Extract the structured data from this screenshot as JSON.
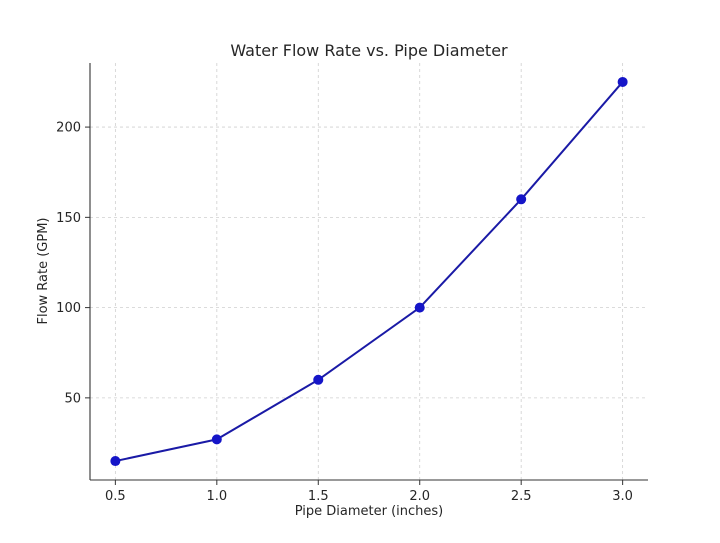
{
  "chart_data": {
    "type": "line",
    "title": "Water Flow Rate vs. Pipe Diameter",
    "xlabel": "Pipe Diameter (inches)",
    "ylabel": "Flow Rate (GPM)",
    "x": [
      0.5,
      1.0,
      1.5,
      2.0,
      2.5,
      3.0
    ],
    "series": [
      {
        "values": [
          15,
          27,
          60,
          100,
          160,
          225
        ]
      }
    ],
    "xlim": [
      0.375,
      3.125
    ],
    "ylim": [
      4.5,
      235.5
    ],
    "xticks": [
      "0.5",
      "1.0",
      "1.5",
      "2.0",
      "2.5",
      "3.0"
    ],
    "xtick_values": [
      0.5,
      1.0,
      1.5,
      2.0,
      2.5,
      3.0
    ],
    "yticks": [
      "50",
      "100",
      "150",
      "200"
    ],
    "ytick_values": [
      50,
      100,
      150,
      200
    ],
    "grid": true,
    "line_color": "#1a1aa6",
    "marker_color": "#1515c8"
  }
}
